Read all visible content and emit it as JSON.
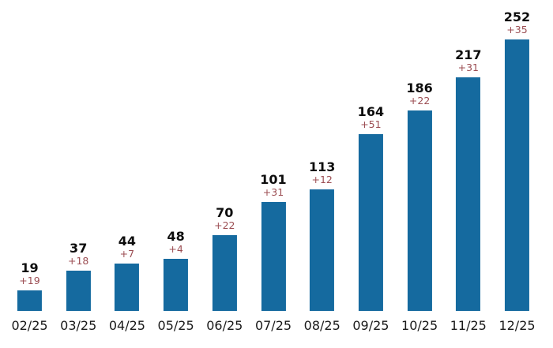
{
  "chart_data": {
    "type": "bar",
    "title": "",
    "xlabel": "",
    "ylabel": "",
    "categories": [
      "02/25",
      "03/25",
      "04/25",
      "05/25",
      "06/25",
      "07/25",
      "08/25",
      "09/25",
      "10/25",
      "11/25",
      "12/25"
    ],
    "series": [
      {
        "name": "cumulative_total",
        "values": [
          19,
          37,
          44,
          48,
          70,
          101,
          113,
          164,
          186,
          217,
          252
        ]
      },
      {
        "name": "monthly_delta",
        "values": [
          19,
          18,
          7,
          4,
          22,
          31,
          12,
          51,
          22,
          31,
          35
        ]
      }
    ],
    "total_labels": [
      "19",
      "37",
      "44",
      "48",
      "70",
      "101",
      "113",
      "164",
      "186",
      "217",
      "252"
    ],
    "delta_labels": [
      "+19",
      "+18",
      "+7",
      "+4",
      "+22",
      "+31",
      "+12",
      "+51",
      "+22",
      "+31",
      "+35"
    ],
    "ylim": [
      0,
      252
    ],
    "grid": false,
    "axes_visible": false,
    "legend": "none",
    "colors": {
      "bar": "#156a9f",
      "total_label": "#0d0d0d",
      "delta_label": "#9c4e53",
      "tick_label": "#1a1a1a",
      "background": "#ffffff"
    }
  }
}
